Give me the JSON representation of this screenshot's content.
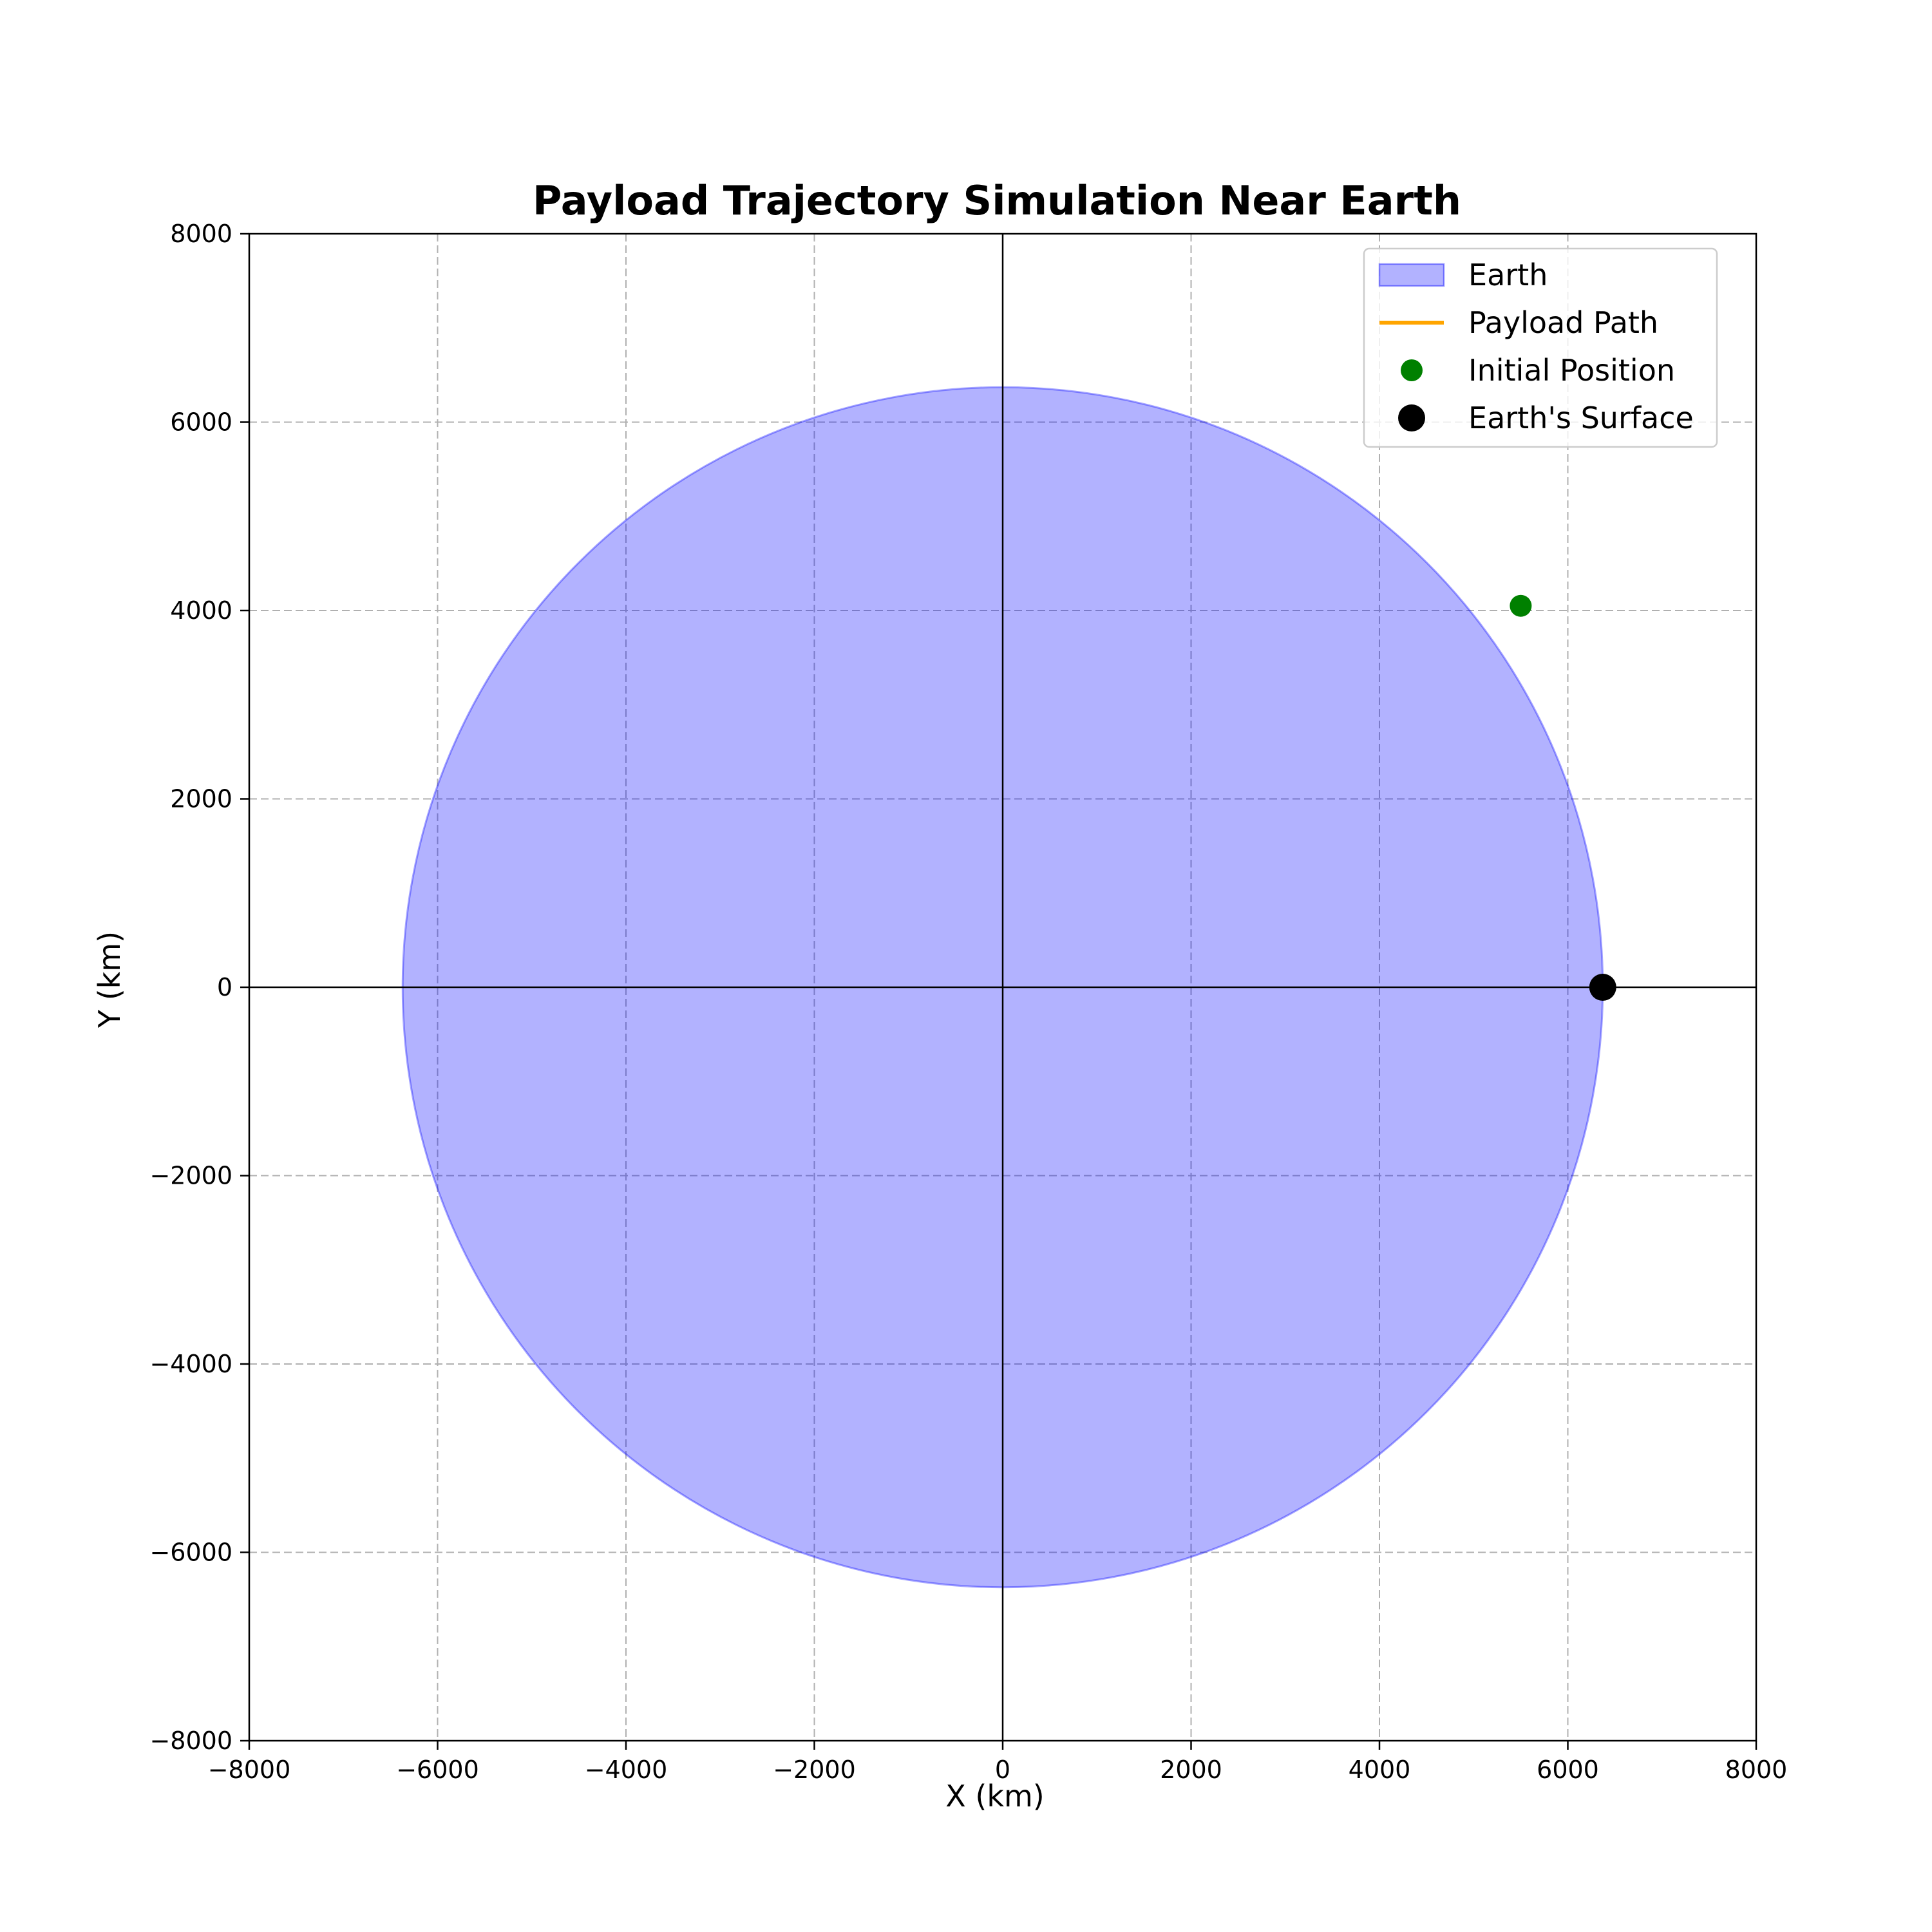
{
  "chart_data": {
    "type": "scatter",
    "title": "Payload Trajectory Simulation Near Earth",
    "xlabel": "X (km)",
    "ylabel": "Y (km)",
    "xlim": [
      -8000,
      8000
    ],
    "ylim": [
      -8000,
      8000
    ],
    "xticks": [
      -8000,
      -6000,
      -4000,
      -2000,
      0,
      2000,
      4000,
      6000,
      8000
    ],
    "yticks": [
      -8000,
      -6000,
      -4000,
      -2000,
      0,
      2000,
      4000,
      6000,
      8000
    ],
    "xtick_labels": [
      "−8000",
      "−6000",
      "−4000",
      "−2000",
      "0",
      "2000",
      "4000",
      "6000",
      "8000"
    ],
    "ytick_labels": [
      "−8000",
      "−6000",
      "−4000",
      "−2000",
      "0",
      "2000",
      "4000",
      "6000",
      "8000"
    ],
    "grid": true,
    "grid_style": "dashed",
    "legend_position": "top-right",
    "earth": {
      "name": "Earth",
      "center": [
        0,
        0
      ],
      "radius": 6371,
      "color": "#0000ff"
    },
    "series": [
      {
        "name": "Payload Path",
        "kind": "line",
        "color": "#ffa500",
        "points": []
      },
      {
        "name": "Initial Position",
        "kind": "point",
        "color": "#008000",
        "x": 5500,
        "y": 4050
      },
      {
        "name": "Earth's Surface",
        "kind": "point",
        "color": "#000000",
        "x": 6371,
        "y": 0
      }
    ],
    "legend": [
      "Earth",
      "Payload Path",
      "Initial Position",
      "Earth's Surface"
    ]
  }
}
